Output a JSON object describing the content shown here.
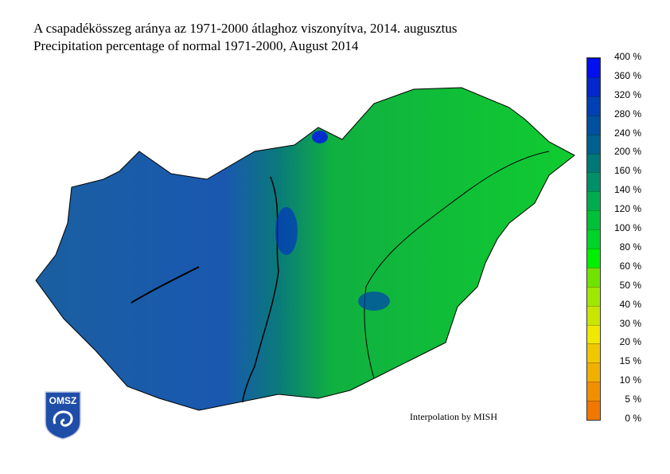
{
  "title_hu": "A csapadékösszeg aránya az 1971-2000 átlaghoz viszonyítva, 2014. augusztus",
  "title_en": "Precipitation percentage of normal 1971-2000, August 2014",
  "credit": "Interpolation by MISH",
  "logo_text": "OMSZ",
  "legend": {
    "labels": [
      "0 %",
      "5 %",
      "10 %",
      "15 %",
      "20 %",
      "30 %",
      "40 %",
      "50 %",
      "60 %",
      "80 %",
      "100 %",
      "120 %",
      "140 %",
      "160 %",
      "200 %",
      "240 %",
      "280 %",
      "320 %",
      "360 %",
      "400 %"
    ],
    "colors": [
      "#f07800",
      "#f09000",
      "#f0b000",
      "#f0c800",
      "#f0e800",
      "#c8e600",
      "#a0e800",
      "#70e400",
      "#00f000",
      "#00d428",
      "#00c038",
      "#00ac50",
      "#009068",
      "#007878",
      "#006090",
      "#0050a0",
      "#0040b4",
      "#0028cc",
      "#0010f0"
    ]
  },
  "map": {
    "west_color": "#1a5fa8",
    "central_color": "#1a48b8",
    "east_color": "#10cc30",
    "border_color": "#000000"
  }
}
